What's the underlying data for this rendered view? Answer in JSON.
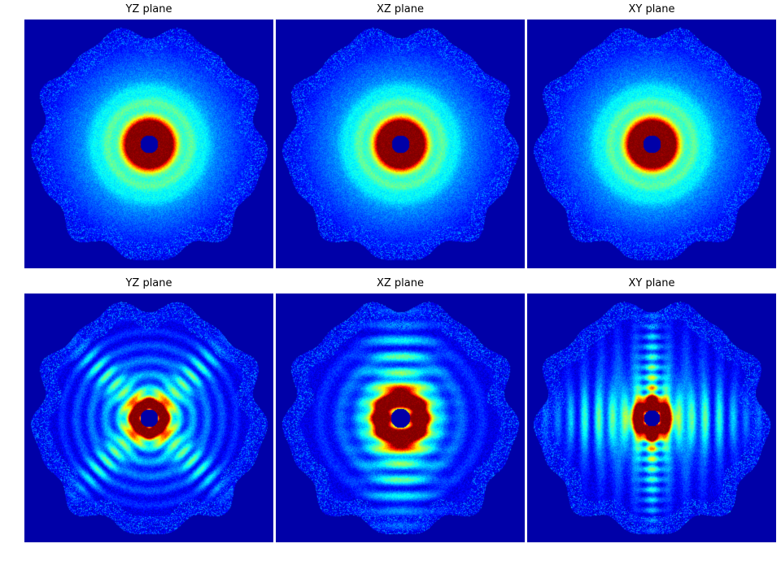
{
  "chart_data": [
    {
      "type": "heatmap",
      "title": "YZ plane",
      "row": 1,
      "pattern": "rings",
      "colormap": "jet"
    },
    {
      "type": "heatmap",
      "title": "XZ plane",
      "row": 1,
      "pattern": "rings",
      "colormap": "jet"
    },
    {
      "type": "heatmap",
      "title": "XY plane",
      "row": 1,
      "pattern": "rings",
      "colormap": "jet"
    },
    {
      "type": "heatmap",
      "title": "YZ plane",
      "row": 2,
      "pattern": "diagonal-cross",
      "colormap": "jet"
    },
    {
      "type": "heatmap",
      "title": "XZ plane",
      "row": 2,
      "pattern": "ring-fringes-vertical",
      "colormap": "jet"
    },
    {
      "type": "heatmap",
      "title": "XY plane",
      "row": 2,
      "pattern": "cross-fringes-horizontal",
      "colormap": "jet"
    }
  ],
  "colors": {
    "background": "#00008f"
  }
}
